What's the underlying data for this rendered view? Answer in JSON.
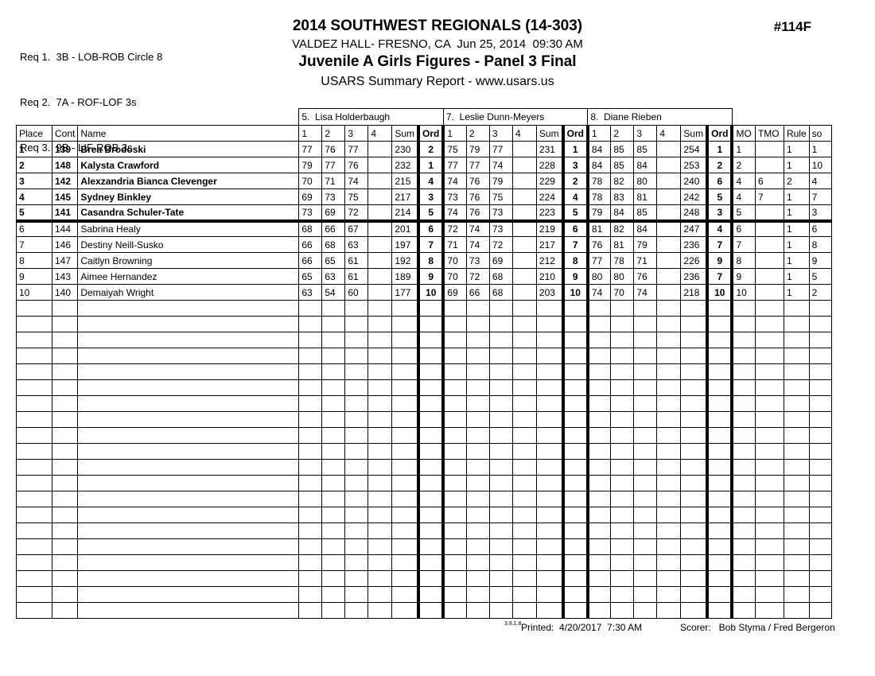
{
  "page": {
    "requirements": [
      "Req 1.  3B - LOB-ROB Circle 8",
      "Req 2.  7A - ROF-LOF 3s",
      "Req 3.  9B - LIF-ROB 3s"
    ],
    "title": "2014 SOUTHWEST REGIONALS (14-303)",
    "venue_line": "VALDEZ HALL- FRESNO, CA  Jun 25, 2014  09:30 AM",
    "event_line": "Juvenile A Girls Figures - Panel 3 Final",
    "report_line": "USARS Summary Report - www.usars.us",
    "event_number": "#114F"
  },
  "table": {
    "headers": {
      "place": "Place",
      "cont": "Cont",
      "name": "Name",
      "score_cols": [
        "1",
        "2",
        "3",
        "4",
        "Sum"
      ],
      "ord": "Ord",
      "mo": "MO",
      "tmo": "TMO",
      "rule": "Rule",
      "so": "so"
    },
    "judges": [
      {
        "name": "5.  Lisa Holderbaugh"
      },
      {
        "name": "7.  Leslie Dunn-Meyers"
      },
      {
        "name": "8.  Diane Rieben"
      }
    ],
    "finalist_cutoff_after_place": 5,
    "empty_rows": 20,
    "skaters": [
      {
        "place": "1",
        "cont": "139",
        "name": "Brea Brodoski",
        "bold": true,
        "judges": [
          {
            "scores": [
              "77",
              "76",
              "77",
              "",
              "230"
            ],
            "ord": "2"
          },
          {
            "scores": [
              "75",
              "79",
              "77",
              "",
              "231"
            ],
            "ord": "1"
          },
          {
            "scores": [
              "84",
              "85",
              "85",
              "",
              "254"
            ],
            "ord": "1"
          }
        ],
        "mo": "1",
        "tmo": "",
        "rule": "1",
        "so": "1"
      },
      {
        "place": "2",
        "cont": "148",
        "name": "Kalysta Crawford",
        "bold": true,
        "judges": [
          {
            "scores": [
              "79",
              "77",
              "76",
              "",
              "232"
            ],
            "ord": "1"
          },
          {
            "scores": [
              "77",
              "77",
              "74",
              "",
              "228"
            ],
            "ord": "3"
          },
          {
            "scores": [
              "84",
              "85",
              "84",
              "",
              "253"
            ],
            "ord": "2"
          }
        ],
        "mo": "2",
        "tmo": "",
        "rule": "1",
        "so": "10"
      },
      {
        "place": "3",
        "cont": "142",
        "name": "Alexzandria Bianca Clevenger",
        "bold": true,
        "judges": [
          {
            "scores": [
              "70",
              "71",
              "74",
              "",
              "215"
            ],
            "ord": "4"
          },
          {
            "scores": [
              "74",
              "76",
              "79",
              "",
              "229"
            ],
            "ord": "2"
          },
          {
            "scores": [
              "78",
              "82",
              "80",
              "",
              "240"
            ],
            "ord": "6"
          }
        ],
        "mo": "4",
        "tmo": "6",
        "rule": "2",
        "so": "4"
      },
      {
        "place": "4",
        "cont": "145",
        "name": "Sydney Binkley",
        "bold": true,
        "judges": [
          {
            "scores": [
              "69",
              "73",
              "75",
              "",
              "217"
            ],
            "ord": "3"
          },
          {
            "scores": [
              "73",
              "76",
              "75",
              "",
              "224"
            ],
            "ord": "4"
          },
          {
            "scores": [
              "78",
              "83",
              "81",
              "",
              "242"
            ],
            "ord": "5"
          }
        ],
        "mo": "4",
        "tmo": "7",
        "rule": "1",
        "so": "7"
      },
      {
        "place": "5",
        "cont": "141",
        "name": "Casandra Schuler-Tate",
        "bold": true,
        "judges": [
          {
            "scores": [
              "73",
              "69",
              "72",
              "",
              "214"
            ],
            "ord": "5"
          },
          {
            "scores": [
              "74",
              "76",
              "73",
              "",
              "223"
            ],
            "ord": "5"
          },
          {
            "scores": [
              "79",
              "84",
              "85",
              "",
              "248"
            ],
            "ord": "3"
          }
        ],
        "mo": "5",
        "tmo": "",
        "rule": "1",
        "so": "3"
      },
      {
        "place": "6",
        "cont": "144",
        "name": "Sabrina Healy",
        "bold": false,
        "judges": [
          {
            "scores": [
              "68",
              "66",
              "67",
              "",
              "201"
            ],
            "ord": "6"
          },
          {
            "scores": [
              "72",
              "74",
              "73",
              "",
              "219"
            ],
            "ord": "6"
          },
          {
            "scores": [
              "81",
              "82",
              "84",
              "",
              "247"
            ],
            "ord": "4"
          }
        ],
        "mo": "6",
        "tmo": "",
        "rule": "1",
        "so": "6"
      },
      {
        "place": "7",
        "cont": "146",
        "name": "Destiny Neill-Susko",
        "bold": false,
        "judges": [
          {
            "scores": [
              "66",
              "68",
              "63",
              "",
              "197"
            ],
            "ord": "7"
          },
          {
            "scores": [
              "71",
              "74",
              "72",
              "",
              "217"
            ],
            "ord": "7"
          },
          {
            "scores": [
              "76",
              "81",
              "79",
              "",
              "236"
            ],
            "ord": "7"
          }
        ],
        "mo": "7",
        "tmo": "",
        "rule": "1",
        "so": "8"
      },
      {
        "place": "8",
        "cont": "147",
        "name": "Caitlyn Browning",
        "bold": false,
        "judges": [
          {
            "scores": [
              "66",
              "65",
              "61",
              "",
              "192"
            ],
            "ord": "8"
          },
          {
            "scores": [
              "70",
              "73",
              "69",
              "",
              "212"
            ],
            "ord": "8"
          },
          {
            "scores": [
              "77",
              "78",
              "71",
              "",
              "226"
            ],
            "ord": "9"
          }
        ],
        "mo": "8",
        "tmo": "",
        "rule": "1",
        "so": "9"
      },
      {
        "place": "9",
        "cont": "143",
        "name": "Aimee Hernandez",
        "bold": false,
        "judges": [
          {
            "scores": [
              "65",
              "63",
              "61",
              "",
              "189"
            ],
            "ord": "9"
          },
          {
            "scores": [
              "70",
              "72",
              "68",
              "",
              "210"
            ],
            "ord": "9"
          },
          {
            "scores": [
              "80",
              "80",
              "76",
              "",
              "236"
            ],
            "ord": "7"
          }
        ],
        "mo": "9",
        "tmo": "",
        "rule": "1",
        "so": "5"
      },
      {
        "place": "10",
        "cont": "140",
        "name": "Demaiyah Wright",
        "bold": false,
        "judges": [
          {
            "scores": [
              "63",
              "54",
              "60",
              "",
              "177"
            ],
            "ord": "10"
          },
          {
            "scores": [
              "69",
              "66",
              "68",
              "",
              "203"
            ],
            "ord": "10"
          },
          {
            "scores": [
              "74",
              "70",
              "74",
              "",
              "218"
            ],
            "ord": "10"
          }
        ],
        "mo": "10",
        "tmo": "",
        "rule": "1",
        "so": "2"
      }
    ]
  },
  "footer": {
    "version": "3.8.1.8",
    "printed": "Printed:  4/20/2017  7:30 AM",
    "scorer": "Scorer:   Bob Styma / Fred Bergeron"
  }
}
